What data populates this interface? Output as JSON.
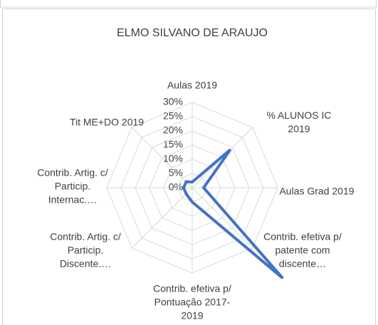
{
  "chart_data": {
    "type": "radar",
    "title": "ELMO SILVANO DE ARAUJO",
    "categories": [
      "Aulas 2019",
      "% ALUNOS IC 2019",
      "Aulas Grad 2019",
      "Contrib. efetiva p/ patente com discente…",
      "Contrib. efetiva p/ Pontuação 2017-2019",
      "Contrib. Artig. c/ Particip. Discente.…",
      "Contrib. Artig. c/ Particip. Internac.…",
      "Tit ME+DO 2019"
    ],
    "series": [
      {
        "name": "ELMO SILVANO DE ARAUJO",
        "color": "#4472c4",
        "values": [
          2,
          19,
          4,
          45,
          5,
          3,
          3,
          3
        ]
      }
    ],
    "ylim": [
      0,
      30
    ],
    "yticks": [
      {
        "value": 0,
        "label": "0%"
      },
      {
        "value": 5,
        "label": "5%"
      },
      {
        "value": 10,
        "label": "10%"
      },
      {
        "value": 15,
        "label": "15%"
      },
      {
        "value": 20,
        "label": "20%"
      },
      {
        "value": 25,
        "label": "25%"
      },
      {
        "value": 30,
        "label": "30%"
      }
    ],
    "grid": true
  }
}
